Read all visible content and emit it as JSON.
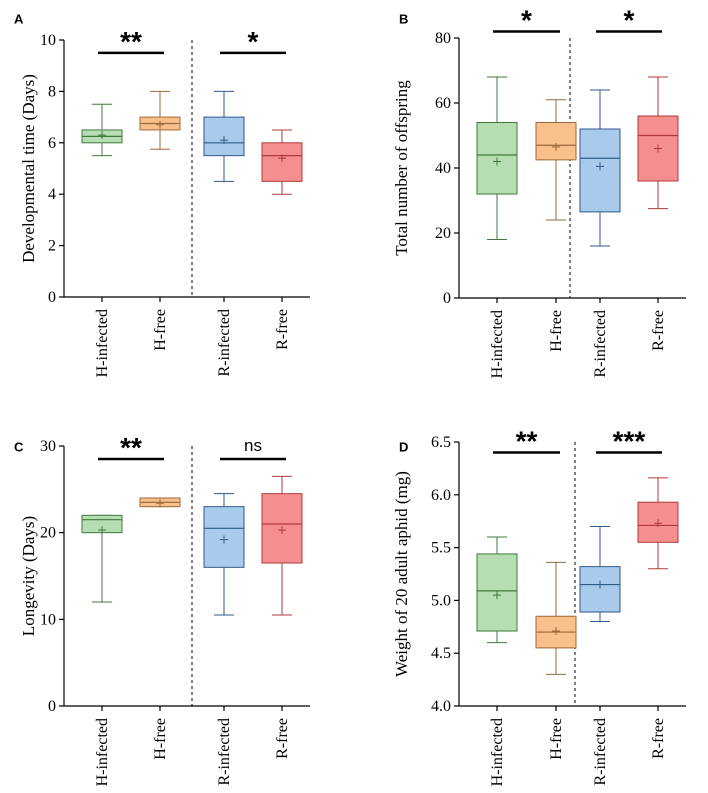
{
  "chart_data": [
    {
      "panel": "A",
      "type": "box",
      "ylabel": "Developmental time (Days)",
      "ylim": [
        0,
        10
      ],
      "yticks": [
        0,
        2,
        4,
        6,
        8,
        10
      ],
      "categories": [
        "H-infected",
        "H-free",
        "R-infected",
        "R-free"
      ],
      "boxes": [
        {
          "min": 5.5,
          "q1": 6.0,
          "median": 6.25,
          "q3": 6.5,
          "max": 7.5,
          "mean": 6.3,
          "color": "#b7deb3",
          "edge": "#3f7a3c"
        },
        {
          "min": 5.75,
          "q1": 6.5,
          "median": 6.75,
          "q3": 7.0,
          "max": 8.0,
          "mean": 6.7,
          "color": "#f9c08c",
          "edge": "#9a6a3a"
        },
        {
          "min": 4.5,
          "q1": 5.5,
          "median": 6.0,
          "q3": 7.0,
          "max": 8.0,
          "mean": 6.1,
          "color": "#a9cbeb",
          "edge": "#2f5a8a"
        },
        {
          "min": 4.0,
          "q1": 4.5,
          "median": 5.5,
          "q3": 6.0,
          "max": 6.5,
          "mean": 5.4,
          "color": "#f58e8e",
          "edge": "#b03a3a"
        }
      ],
      "significance": [
        {
          "pair": [
            0,
            1
          ],
          "label": "**",
          "y": 9.5
        },
        {
          "pair": [
            2,
            3
          ],
          "label": "*",
          "y": 9.5
        }
      ]
    },
    {
      "panel": "B",
      "type": "box",
      "ylabel": "Total number of offspring",
      "ylim": [
        0,
        80
      ],
      "yticks": [
        0,
        20,
        40,
        60,
        80
      ],
      "categories": [
        "H-infected",
        "H-free",
        "R-infected",
        "R-free"
      ],
      "boxes": [
        {
          "min": 18,
          "q1": 32,
          "median": 44,
          "q3": 54,
          "max": 68,
          "mean": 42,
          "color": "#b7deb3",
          "edge": "#3f7a3c"
        },
        {
          "min": 24,
          "q1": 42.5,
          "median": 47,
          "q3": 54,
          "max": 61,
          "mean": 46.5,
          "color": "#f9c08c",
          "edge": "#9a6a3a"
        },
        {
          "min": 16,
          "q1": 26.5,
          "median": 43,
          "q3": 52,
          "max": 64,
          "mean": 40.5,
          "color": "#a9cbeb",
          "edge": "#2f5a8a"
        },
        {
          "min": 27.5,
          "q1": 36,
          "median": 50,
          "q3": 56,
          "max": 68,
          "mean": 46,
          "color": "#f58e8e",
          "edge": "#b03a3a"
        }
      ],
      "significance": [
        {
          "pair": [
            0,
            1
          ],
          "label": "*",
          "y": 82
        },
        {
          "pair": [
            2,
            3
          ],
          "label": "*",
          "y": 82
        }
      ]
    },
    {
      "panel": "C",
      "type": "box",
      "ylabel": "Longevity (Days)",
      "ylim": [
        0,
        30
      ],
      "yticks": [
        0,
        10,
        20,
        30
      ],
      "categories": [
        "H-infected",
        "H-free",
        "R-infected",
        "R-free"
      ],
      "boxes": [
        {
          "min": 12,
          "q1": 20,
          "median": 21.5,
          "q3": 22,
          "max": 22,
          "mean": 20.3,
          "color": "#b7deb3",
          "edge": "#3f7a3c"
        },
        {
          "min": 23,
          "q1": 23,
          "median": 23.5,
          "q3": 24,
          "max": 24,
          "mean": 23.4,
          "color": "#f9c08c",
          "edge": "#9a6a3a"
        },
        {
          "min": 10.5,
          "q1": 16,
          "median": 20.5,
          "q3": 23,
          "max": 24.5,
          "mean": 19.2,
          "color": "#a9cbeb",
          "edge": "#2f5a8a"
        },
        {
          "min": 10.5,
          "q1": 16.5,
          "median": 21,
          "q3": 24.5,
          "max": 26.5,
          "mean": 20.3,
          "color": "#f58e8e",
          "edge": "#b03a3a"
        }
      ],
      "significance": [
        {
          "pair": [
            0,
            1
          ],
          "label": "**",
          "y": 28.5
        },
        {
          "pair": [
            2,
            3
          ],
          "label": "ns",
          "y": 28.5
        }
      ]
    },
    {
      "panel": "D",
      "type": "box",
      "ylabel": "Weight of 20 adult aphid (mg)",
      "ylim": [
        4.0,
        6.5
      ],
      "yticks": [
        4.0,
        4.5,
        5.0,
        5.5,
        6.0,
        6.5
      ],
      "ytick_labels": [
        "4.0",
        "4.5",
        "5.0",
        "5.5",
        "6.0",
        "6.5"
      ],
      "categories": [
        "H-infected",
        "H-free",
        "R-infected",
        "R-free"
      ],
      "boxes": [
        {
          "min": 4.6,
          "q1": 4.71,
          "median": 5.09,
          "q3": 5.44,
          "max": 5.6,
          "mean": 5.05,
          "color": "#b7deb3",
          "edge": "#3f7a3c"
        },
        {
          "min": 4.3,
          "q1": 4.55,
          "median": 4.7,
          "q3": 4.85,
          "max": 5.36,
          "mean": 4.71,
          "color": "#f9c08c",
          "edge": "#9a6a3a"
        },
        {
          "min": 4.8,
          "q1": 4.89,
          "median": 5.15,
          "q3": 5.32,
          "max": 5.7,
          "mean": 5.15,
          "color": "#a9cbeb",
          "edge": "#2f5a8a"
        },
        {
          "min": 5.3,
          "q1": 5.55,
          "median": 5.71,
          "q3": 5.93,
          "max": 6.16,
          "mean": 5.73,
          "color": "#f58e8e",
          "edge": "#b03a3a"
        }
      ],
      "significance": [
        {
          "pair": [
            0,
            1
          ],
          "label": "**",
          "y": 6.4
        },
        {
          "pair": [
            2,
            3
          ],
          "label": "***",
          "y": 6.4
        }
      ]
    }
  ]
}
